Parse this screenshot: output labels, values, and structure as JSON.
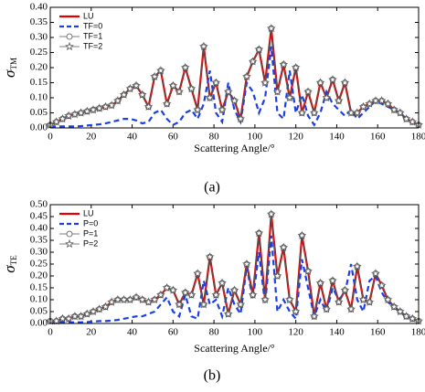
{
  "chart_data": [
    {
      "type": "line",
      "caption": "(a)",
      "x_label": "Scattering Angle/°",
      "y_label": "σTM",
      "x": [
        0,
        3,
        6,
        9,
        12,
        15,
        18,
        21,
        24,
        27,
        30,
        33,
        36,
        39,
        42,
        45,
        48,
        51,
        54,
        57,
        60,
        63,
        66,
        69,
        72,
        75,
        78,
        81,
        84,
        87,
        90,
        93,
        96,
        99,
        102,
        105,
        108,
        111,
        114,
        117,
        120,
        123,
        126,
        129,
        132,
        135,
        138,
        141,
        144,
        147,
        150,
        153,
        156,
        159,
        162,
        165,
        168,
        171,
        174,
        177,
        180
      ],
      "xlim": [
        0,
        180
      ],
      "xticks": [
        0,
        20,
        40,
        60,
        80,
        100,
        120,
        140,
        160,
        180
      ],
      "ylim": [
        0,
        0.4
      ],
      "yticks": [
        {
          "value": 0,
          "label": "0.00"
        },
        {
          "value": 0.05,
          "label": "0.05"
        },
        {
          "value": 0.1,
          "label": "0.10"
        },
        {
          "value": 0.15,
          "label": "0.15"
        },
        {
          "value": 0.2,
          "label": "0.20"
        },
        {
          "value": 0.25,
          "label": "0.25"
        },
        {
          "value": 0.3,
          "label": "0.30"
        },
        {
          "value": 0.35,
          "label": "0.35"
        },
        {
          "value": 0.4,
          "label": "0.40"
        }
      ],
      "series": [
        {
          "name": "LU",
          "color": "#e00000",
          "dash": false,
          "marker": "none",
          "values": [
            0.01,
            0.02,
            0.03,
            0.04,
            0.045,
            0.05,
            0.055,
            0.06,
            0.065,
            0.07,
            0.075,
            0.09,
            0.11,
            0.13,
            0.14,
            0.11,
            0.07,
            0.17,
            0.19,
            0.08,
            0.14,
            0.12,
            0.2,
            0.13,
            0.06,
            0.27,
            0.1,
            0.15,
            0.06,
            0.12,
            0.09,
            0.03,
            0.17,
            0.22,
            0.26,
            0.15,
            0.33,
            0.12,
            0.21,
            0.1,
            0.2,
            0.05,
            0.12,
            0.05,
            0.15,
            0.1,
            0.16,
            0.09,
            0.15,
            0.05,
            0.05,
            0.07,
            0.08,
            0.09,
            0.09,
            0.08,
            0.06,
            0.05,
            0.03,
            0.02,
            0.01
          ]
        },
        {
          "name": "TF=0",
          "color": "#1a3fe6",
          "dash": true,
          "marker": "none",
          "values": [
            0.005,
            0.005,
            0.005,
            0.005,
            0.005,
            0.006,
            0.008,
            0.01,
            0.012,
            0.015,
            0.02,
            0.025,
            0.03,
            0.03,
            0.025,
            0.015,
            0.02,
            0.05,
            0.06,
            0.03,
            0.01,
            0.02,
            0.05,
            0.06,
            0.03,
            0.08,
            0.19,
            0.05,
            0.02,
            0.15,
            0.06,
            0.02,
            0.15,
            0.12,
            0.05,
            0.1,
            0.27,
            0.05,
            0.03,
            0.19,
            0.05,
            0.11,
            0.04,
            0.01,
            0.05,
            0.12,
            0.08,
            0.06,
            0.04,
            0.06,
            0.03,
            0.05,
            0.07,
            0.09,
            0.08,
            0.07,
            0.06,
            0.05,
            0.03,
            0.02,
            0.01
          ]
        },
        {
          "name": "TF=1",
          "color": "#555555",
          "dash": false,
          "marker": "circle",
          "values": [
            0.01,
            0.02,
            0.03,
            0.04,
            0.045,
            0.05,
            0.055,
            0.06,
            0.065,
            0.07,
            0.075,
            0.09,
            0.11,
            0.13,
            0.14,
            0.11,
            0.07,
            0.17,
            0.19,
            0.08,
            0.14,
            0.12,
            0.2,
            0.13,
            0.06,
            0.27,
            0.1,
            0.15,
            0.06,
            0.12,
            0.09,
            0.03,
            0.17,
            0.22,
            0.26,
            0.15,
            0.33,
            0.12,
            0.21,
            0.1,
            0.2,
            0.05,
            0.12,
            0.05,
            0.15,
            0.1,
            0.16,
            0.09,
            0.15,
            0.05,
            0.05,
            0.07,
            0.08,
            0.09,
            0.09,
            0.08,
            0.06,
            0.05,
            0.03,
            0.02,
            0.01
          ]
        },
        {
          "name": "TF=2",
          "color": "#555555",
          "dash": false,
          "marker": "star",
          "values": [
            0.01,
            0.02,
            0.03,
            0.04,
            0.045,
            0.05,
            0.055,
            0.06,
            0.065,
            0.07,
            0.075,
            0.09,
            0.11,
            0.13,
            0.14,
            0.11,
            0.07,
            0.17,
            0.19,
            0.08,
            0.14,
            0.12,
            0.2,
            0.13,
            0.06,
            0.27,
            0.1,
            0.15,
            0.06,
            0.12,
            0.09,
            0.03,
            0.17,
            0.22,
            0.26,
            0.15,
            0.33,
            0.12,
            0.21,
            0.1,
            0.2,
            0.05,
            0.12,
            0.05,
            0.15,
            0.1,
            0.16,
            0.09,
            0.15,
            0.05,
            0.05,
            0.07,
            0.08,
            0.09,
            0.09,
            0.08,
            0.06,
            0.05,
            0.03,
            0.02,
            0.01
          ]
        }
      ]
    },
    {
      "type": "line",
      "caption": "(b)",
      "x_label": "Scattering Angle/°",
      "y_label": "σTE",
      "x": [
        0,
        3,
        6,
        9,
        12,
        15,
        18,
        21,
        24,
        27,
        30,
        33,
        36,
        39,
        42,
        45,
        48,
        51,
        54,
        57,
        60,
        63,
        66,
        69,
        72,
        75,
        78,
        81,
        84,
        87,
        90,
        93,
        96,
        99,
        102,
        105,
        108,
        111,
        114,
        117,
        120,
        123,
        126,
        129,
        132,
        135,
        138,
        141,
        144,
        147,
        150,
        153,
        156,
        159,
        162,
        165,
        168,
        171,
        174,
        177,
        180
      ],
      "xlim": [
        0,
        180
      ],
      "xticks": [
        0,
        20,
        40,
        60,
        80,
        100,
        120,
        140,
        160,
        180
      ],
      "ylim": [
        0,
        0.5
      ],
      "yticks": [
        {
          "value": 0,
          "label": "0.00"
        },
        {
          "value": 0.05,
          "label": "0.05"
        },
        {
          "value": 0.1,
          "label": "0.10"
        },
        {
          "value": 0.15,
          "label": "0.15"
        },
        {
          "value": 0.2,
          "label": "0.20"
        },
        {
          "value": 0.25,
          "label": "0.25"
        },
        {
          "value": 0.3,
          "label": "0.30"
        },
        {
          "value": 0.35,
          "label": "0.35"
        },
        {
          "value": 0.4,
          "label": "0.40"
        },
        {
          "value": 0.45,
          "label": "0.45"
        },
        {
          "value": 0.5,
          "label": "0.50"
        }
      ],
      "series": [
        {
          "name": "LU",
          "color": "#e00000",
          "dash": false,
          "marker": "none",
          "values": [
            0.01,
            0.01,
            0.02,
            0.02,
            0.03,
            0.03,
            0.04,
            0.05,
            0.06,
            0.07,
            0.09,
            0.1,
            0.1,
            0.1,
            0.11,
            0.1,
            0.09,
            0.1,
            0.12,
            0.15,
            0.14,
            0.08,
            0.13,
            0.12,
            0.21,
            0.08,
            0.28,
            0.12,
            0.17,
            0.04,
            0.14,
            0.08,
            0.25,
            0.12,
            0.38,
            0.1,
            0.46,
            0.2,
            0.32,
            0.1,
            0.05,
            0.37,
            0.22,
            0.03,
            0.17,
            0.06,
            0.18,
            0.09,
            0.14,
            0.06,
            0.24,
            0.1,
            0.09,
            0.21,
            0.16,
            0.1,
            0.07,
            0.05,
            0.03,
            0.02,
            0.01
          ]
        },
        {
          "name": "P=0",
          "color": "#1a3fe6",
          "dash": true,
          "marker": "none",
          "values": [
            0.005,
            0.005,
            0.005,
            0.005,
            0.005,
            0.005,
            0.006,
            0.008,
            0.01,
            0.01,
            0.012,
            0.015,
            0.02,
            0.025,
            0.03,
            0.03,
            0.04,
            0.05,
            0.08,
            0.11,
            0.05,
            0.03,
            0.12,
            0.03,
            0.02,
            0.18,
            0.08,
            0.1,
            0.03,
            0.15,
            0.08,
            0.04,
            0.24,
            0.1,
            0.3,
            0.08,
            0.37,
            0.05,
            0.1,
            0.05,
            0.02,
            0.27,
            0.15,
            0.03,
            0.1,
            0.05,
            0.15,
            0.1,
            0.13,
            0.25,
            0.1,
            0.05,
            0.18,
            0.2,
            0.13,
            0.09,
            0.07,
            0.05,
            0.03,
            0.02,
            0.01
          ]
        },
        {
          "name": "P=1",
          "color": "#555555",
          "dash": false,
          "marker": "circle",
          "values": [
            0.01,
            0.01,
            0.02,
            0.02,
            0.03,
            0.03,
            0.04,
            0.05,
            0.06,
            0.07,
            0.09,
            0.1,
            0.1,
            0.1,
            0.11,
            0.1,
            0.09,
            0.1,
            0.12,
            0.15,
            0.14,
            0.08,
            0.13,
            0.12,
            0.21,
            0.08,
            0.28,
            0.12,
            0.17,
            0.04,
            0.14,
            0.08,
            0.25,
            0.12,
            0.38,
            0.1,
            0.46,
            0.2,
            0.32,
            0.1,
            0.05,
            0.37,
            0.22,
            0.03,
            0.17,
            0.06,
            0.18,
            0.09,
            0.14,
            0.06,
            0.24,
            0.1,
            0.09,
            0.21,
            0.16,
            0.1,
            0.07,
            0.05,
            0.03,
            0.02,
            0.01
          ]
        },
        {
          "name": "P=2",
          "color": "#555555",
          "dash": false,
          "marker": "star",
          "values": [
            0.01,
            0.01,
            0.02,
            0.02,
            0.03,
            0.03,
            0.04,
            0.05,
            0.06,
            0.07,
            0.09,
            0.1,
            0.1,
            0.1,
            0.11,
            0.1,
            0.09,
            0.1,
            0.12,
            0.15,
            0.14,
            0.08,
            0.13,
            0.12,
            0.21,
            0.08,
            0.28,
            0.12,
            0.17,
            0.04,
            0.14,
            0.08,
            0.25,
            0.12,
            0.38,
            0.1,
            0.46,
            0.2,
            0.32,
            0.1,
            0.05,
            0.37,
            0.22,
            0.03,
            0.17,
            0.06,
            0.18,
            0.09,
            0.14,
            0.06,
            0.24,
            0.1,
            0.09,
            0.21,
            0.16,
            0.1,
            0.07,
            0.05,
            0.03,
            0.02,
            0.01
          ]
        }
      ]
    }
  ]
}
